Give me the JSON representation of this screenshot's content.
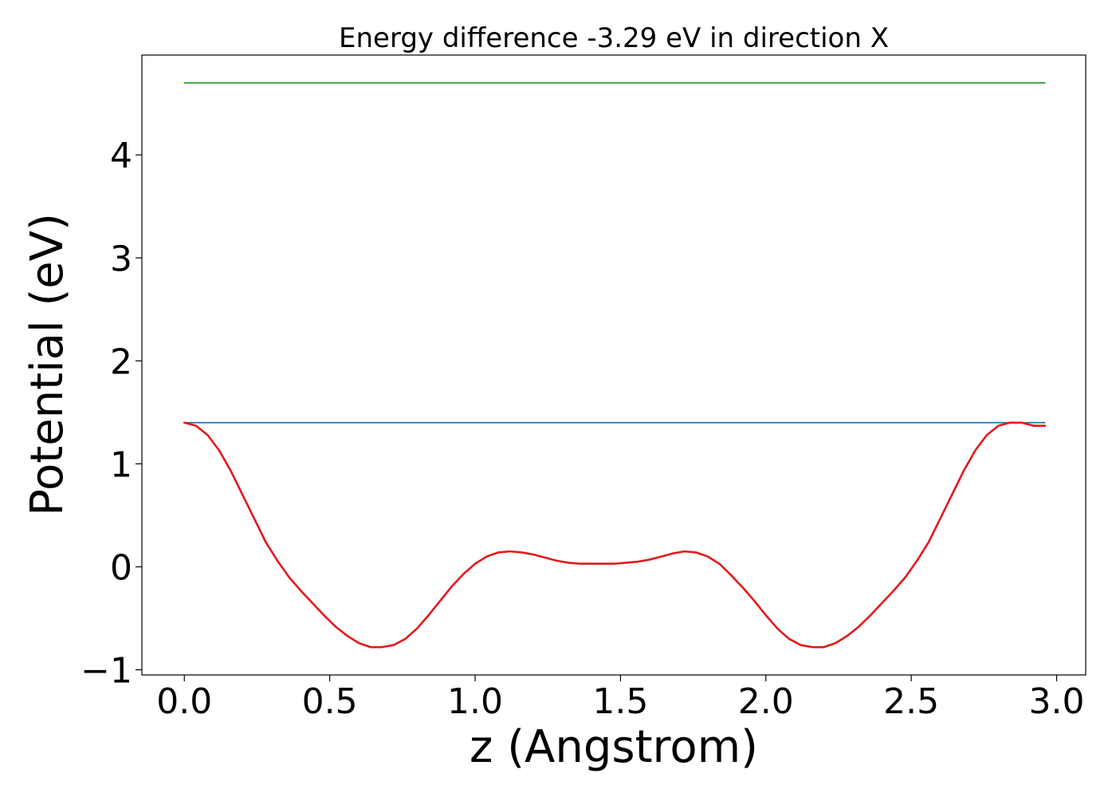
{
  "chart_data": {
    "type": "line",
    "title": "Energy difference -3.29 eV in direction X",
    "xlabel": "z (Angstrom)",
    "ylabel": "Potential (eV)",
    "xlim": [
      -0.146,
      3.1
    ],
    "ylim": [
      -1.05,
      4.97
    ],
    "x_ticks": [
      0.0,
      0.5,
      1.0,
      1.5,
      2.0,
      2.5,
      3.0
    ],
    "x_tick_labels": [
      "0.0",
      "0.5",
      "1.0",
      "1.5",
      "2.0",
      "2.5",
      "3.0"
    ],
    "y_ticks": [
      -1,
      0,
      1,
      2,
      3,
      4
    ],
    "y_tick_labels": [
      "−1",
      "0",
      "1",
      "2",
      "3",
      "4"
    ],
    "grid": false,
    "legend": false,
    "series": [
      {
        "color": "#2ca02c",
        "x": [
          0.0,
          2.96
        ],
        "y": [
          4.7,
          4.7
        ]
      },
      {
        "color": "#1f77b4",
        "x": [
          0.0,
          2.96
        ],
        "y": [
          1.4,
          1.4
        ]
      },
      {
        "color": "#e31a1c",
        "x": [
          0.0,
          0.04,
          0.08,
          0.12,
          0.16,
          0.2,
          0.24,
          0.28,
          0.32,
          0.36,
          0.4,
          0.44,
          0.48,
          0.52,
          0.56,
          0.6,
          0.64,
          0.68,
          0.72,
          0.76,
          0.8,
          0.84,
          0.88,
          0.92,
          0.96,
          1.0,
          1.04,
          1.08,
          1.12,
          1.16,
          1.2,
          1.24,
          1.28,
          1.32,
          1.36,
          1.4,
          1.44,
          1.48,
          1.52,
          1.56,
          1.6,
          1.64,
          1.68,
          1.72,
          1.76,
          1.8,
          1.84,
          1.88,
          1.92,
          1.96,
          2.0,
          2.04,
          2.08,
          2.12,
          2.16,
          2.2,
          2.24,
          2.28,
          2.32,
          2.36,
          2.4,
          2.44,
          2.48,
          2.52,
          2.56,
          2.6,
          2.64,
          2.68,
          2.72,
          2.76,
          2.8,
          2.84,
          2.88,
          2.92,
          2.96
        ],
        "y": [
          1.4,
          1.37,
          1.28,
          1.13,
          0.93,
          0.7,
          0.47,
          0.24,
          0.06,
          -0.1,
          -0.23,
          -0.35,
          -0.47,
          -0.58,
          -0.67,
          -0.74,
          -0.78,
          -0.78,
          -0.76,
          -0.7,
          -0.6,
          -0.47,
          -0.33,
          -0.19,
          -0.07,
          0.03,
          0.1,
          0.14,
          0.15,
          0.14,
          0.12,
          0.09,
          0.06,
          0.04,
          0.03,
          0.03,
          0.03,
          0.03,
          0.04,
          0.05,
          0.07,
          0.1,
          0.13,
          0.15,
          0.14,
          0.1,
          0.03,
          -0.08,
          -0.2,
          -0.33,
          -0.47,
          -0.6,
          -0.7,
          -0.76,
          -0.78,
          -0.78,
          -0.74,
          -0.67,
          -0.58,
          -0.47,
          -0.35,
          -0.23,
          -0.1,
          0.06,
          0.24,
          0.47,
          0.7,
          0.93,
          1.13,
          1.28,
          1.37,
          1.4,
          1.4,
          1.37,
          1.37
        ]
      }
    ]
  }
}
